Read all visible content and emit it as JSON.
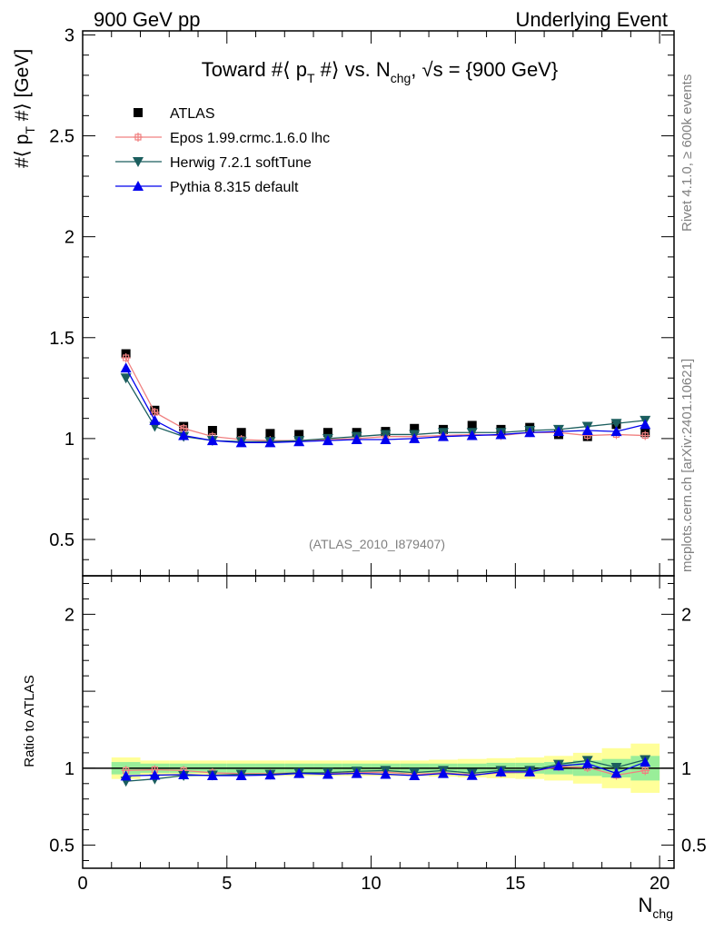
{
  "header": {
    "left": "900 GeV pp",
    "right": "Underlying Event"
  },
  "side": {
    "rivet": "Rivet 4.1.0, ≥ 600k events",
    "mcplots": "mcplots.cern.ch [arXiv:2401.10621]"
  },
  "chart_data": [
    {
      "type": "scatter",
      "title_main": "Toward #⟨ p",
      "title_sub1": "T",
      "title_mid": " #⟩ vs. N",
      "title_sub2": "chg",
      "title_end": ", √s = {900 GeV}",
      "ylabel_main": "#⟨ p",
      "ylabel_sub": "T",
      "ylabel_end": " #⟩ [GeV]",
      "xlabel_main": "N",
      "xlabel_sub": "chg",
      "watermark": "(ATLAS_2010_I879407)",
      "xlim": [
        0,
        20.5
      ],
      "ylim": [
        0.32,
        3.02
      ],
      "yticks": [
        "0.5",
        "1",
        "1.5",
        "2",
        "2.5",
        "3"
      ],
      "ytick_values": [
        0.5,
        1,
        1.5,
        2,
        2.5,
        3
      ],
      "legend_position": "top-left",
      "x": [
        1.5,
        2.5,
        3.5,
        4.5,
        5.5,
        6.5,
        7.5,
        8.5,
        9.5,
        10.5,
        11.5,
        12.5,
        13.5,
        14.5,
        15.5,
        16.5,
        17.5,
        18.5,
        19.5
      ],
      "series": [
        {
          "name": "ATLAS",
          "color": "#000000",
          "marker": "square",
          "values": [
            1.42,
            1.14,
            1.06,
            1.04,
            1.03,
            1.025,
            1.02,
            1.03,
            1.03,
            1.035,
            1.05,
            1.045,
            1.065,
            1.045,
            1.055,
            1.02,
            1.01,
            1.07,
            1.03
          ]
        },
        {
          "name": "Epos 1.99.crmc.1.6.0 lhc",
          "color": "#f08080",
          "marker": "open-cross",
          "values": [
            1.4,
            1.13,
            1.05,
            1.01,
            0.995,
            0.99,
            0.99,
            0.995,
            1.0,
            1.01,
            1.01,
            1.015,
            1.02,
            1.015,
            1.03,
            1.03,
            1.015,
            1.02,
            1.015
          ]
        },
        {
          "name": "Herwig 7.2.1 softTune",
          "color": "#1b5e5e",
          "marker": "triangle-down",
          "values": [
            1.3,
            1.06,
            1.01,
            0.99,
            0.985,
            0.985,
            0.99,
            1.0,
            1.01,
            1.02,
            1.02,
            1.03,
            1.03,
            1.03,
            1.04,
            1.045,
            1.06,
            1.075,
            1.09
          ]
        },
        {
          "name": "Pythia 8.315 default",
          "color": "#0000ee",
          "marker": "triangle-up",
          "values": [
            1.35,
            1.09,
            1.015,
            0.99,
            0.98,
            0.98,
            0.985,
            0.99,
            0.995,
            0.995,
            1.0,
            1.01,
            1.015,
            1.02,
            1.03,
            1.035,
            1.04,
            1.035,
            1.07
          ]
        }
      ]
    },
    {
      "type": "scatter",
      "ylabel": "Ratio to ATLAS",
      "xlim": [
        0,
        20.5
      ],
      "ylim": [
        0.35,
        2.25
      ],
      "yticks": [
        "0.5",
        "1",
        "2"
      ],
      "ytick_values": [
        0.5,
        1,
        2
      ],
      "xticks": [
        "0",
        "5",
        "10",
        "15",
        "20"
      ],
      "xtick_values": [
        0,
        5,
        10,
        15,
        20
      ],
      "band_inner": [
        0.04,
        0.03,
        0.03,
        0.03,
        0.03,
        0.03,
        0.03,
        0.03,
        0.03,
        0.03,
        0.03,
        0.03,
        0.03,
        0.035,
        0.035,
        0.04,
        0.05,
        0.06,
        0.08
      ],
      "band_outer": [
        0.07,
        0.05,
        0.05,
        0.05,
        0.05,
        0.05,
        0.05,
        0.05,
        0.05,
        0.05,
        0.05,
        0.055,
        0.06,
        0.065,
        0.07,
        0.08,
        0.1,
        0.13,
        0.16
      ],
      "series": [
        {
          "name": "Epos 1.99.crmc.1.6.0 lhc",
          "color": "#f08080",
          "marker": "open-cross",
          "values": [
            0.985,
            0.99,
            0.985,
            0.97,
            0.965,
            0.965,
            0.97,
            0.965,
            0.97,
            0.975,
            0.96,
            0.97,
            0.957,
            0.97,
            0.975,
            1.01,
            1.005,
            0.955,
            0.985
          ]
        },
        {
          "name": "Herwig 7.2.1 softTune",
          "color": "#1b5e5e",
          "marker": "triangle-down",
          "values": [
            0.915,
            0.93,
            0.952,
            0.955,
            0.96,
            0.96,
            0.97,
            0.971,
            0.98,
            0.985,
            0.971,
            0.985,
            0.967,
            0.985,
            0.985,
            1.025,
            1.05,
            1.005,
            1.055
          ]
        },
        {
          "name": "Pythia 8.315 default",
          "color": "#0000ee",
          "marker": "triangle-up",
          "values": [
            0.95,
            0.955,
            0.958,
            0.952,
            0.952,
            0.956,
            0.966,
            0.961,
            0.966,
            0.961,
            0.952,
            0.966,
            0.953,
            0.976,
            0.976,
            1.015,
            1.03,
            0.967,
            1.04
          ]
        }
      ]
    }
  ]
}
